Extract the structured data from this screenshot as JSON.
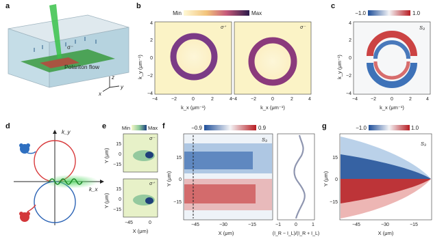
{
  "panels": {
    "a": {
      "label": "a",
      "flow_text": "Polariton flow",
      "axes": [
        "z",
        "x",
        "y"
      ],
      "pol": "σ⁻"
    },
    "b": {
      "label": "b",
      "cbar": [
        "Min",
        "Max"
      ],
      "pols": [
        "σ⁺",
        "σ⁻"
      ],
      "ylabel": "k_y (μm⁻¹)",
      "xlabel": "k_x (μm⁻¹)",
      "yticks": [
        "4",
        "2",
        "0",
        "−2",
        "−4"
      ],
      "xticks": [
        "−4",
        "−2",
        "0",
        "2",
        "4"
      ]
    },
    "c": {
      "label": "c",
      "cbar": [
        "−1.0",
        "1.0"
      ],
      "s3": "S₃",
      "ylabel": "k_y (μm⁻¹)",
      "xlabel": "k_x (μm⁻¹)",
      "yticks": [
        "4",
        "2",
        "0",
        "−2",
        "−4"
      ],
      "xticks": [
        "−4",
        "−2",
        "0",
        "2",
        "4"
      ]
    },
    "d": {
      "label": "d",
      "kx": "k_x",
      "ky": "k_y"
    },
    "e": {
      "label": "e",
      "cbar": [
        "Min",
        "Max"
      ],
      "pols": [
        "σ⁻",
        "σ⁺"
      ],
      "ylabel": "Y (μm)",
      "xlabel": "X (μm)",
      "yticks": [
        "15",
        "0",
        "−15"
      ],
      "xticks": [
        "−45",
        "0"
      ]
    },
    "f": {
      "label": "f",
      "cbar": [
        "−0.9",
        "0.9"
      ],
      "s3": "S₃",
      "ylabel": "Y (μm)",
      "xlabel": "X (μm)",
      "yticks": [
        "15",
        "0",
        "−15"
      ],
      "xticks": [
        "−45",
        "−30",
        "−15"
      ],
      "side_xlabel": "(I_R − I_L)/(I_R + I_L)",
      "side_xticks": [
        "−1",
        "0",
        "1"
      ]
    },
    "g": {
      "label": "g",
      "cbar": [
        "−1.0",
        "1.0"
      ],
      "s3": "S₃",
      "ylabel": "Y (μm)",
      "xlabel": "X (μm)",
      "yticks": [
        "15",
        "0",
        "−15"
      ],
      "xticks": [
        "−45",
        "−30",
        "−15"
      ]
    }
  },
  "colors": {
    "low": "#2a63b0",
    "high": "#c8262a",
    "ring": "#8a3a88",
    "bg_b": "#fbf3c6",
    "beam": "#39c24a"
  }
}
